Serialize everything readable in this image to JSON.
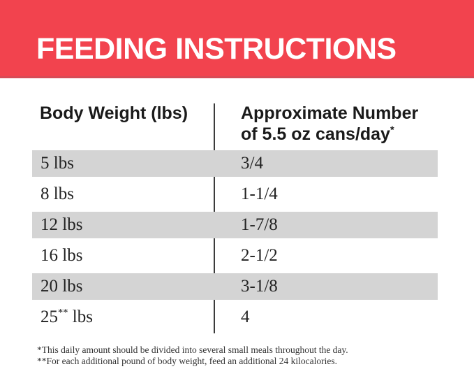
{
  "banner": {
    "title": "FEEDING INSTRUCTIONS",
    "bg_color": "#F2434E",
    "edge_color": "#D84A55",
    "text_color": "#FFFFFF"
  },
  "table": {
    "col1_header": "Body Weight (lbs)",
    "col2_header_line1": "Approximate Number",
    "col2_header_line2": "of 5.5 oz cans/day",
    "col2_header_sup": "*",
    "stripe_color": "#D4D4D4",
    "rows": [
      {
        "weight_num": "5",
        "weight_sup": "",
        "weight_unit": " lbs",
        "cans": "3/4"
      },
      {
        "weight_num": "8",
        "weight_sup": "",
        "weight_unit": " lbs",
        "cans": "1-1/4"
      },
      {
        "weight_num": "12",
        "weight_sup": "",
        "weight_unit": " lbs",
        "cans": "1-7/8"
      },
      {
        "weight_num": "16",
        "weight_sup": "",
        "weight_unit": " lbs",
        "cans": "2-1/2"
      },
      {
        "weight_num": "20",
        "weight_sup": "",
        "weight_unit": " lbs",
        "cans": "3-1/8"
      },
      {
        "weight_num": "25",
        "weight_sup": "**",
        "weight_unit": " lbs",
        "cans": "4"
      }
    ]
  },
  "footnotes": [
    "*This daily amount should be divided into several small meals throughout the day.",
    "**For each additional pound of body weight, feed an additional 24 kilocalories."
  ]
}
